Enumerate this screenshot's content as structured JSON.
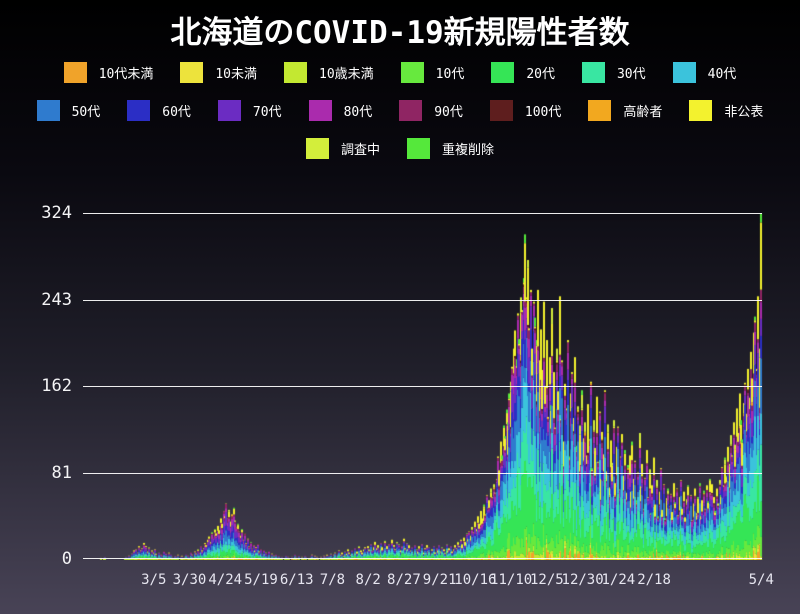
{
  "title": "北海道のCOVID-19新規陽性者数",
  "legend": {
    "rows": [
      [
        0,
        1,
        2,
        3,
        4,
        5,
        6
      ],
      [
        7,
        8,
        9,
        10,
        11,
        12,
        13,
        14
      ],
      [
        15,
        16
      ]
    ],
    "items": [
      {
        "label": "10代未満",
        "color": "#F0A32A"
      },
      {
        "label": "10未満",
        "color": "#EDE33C"
      },
      {
        "label": "10歳未満",
        "color": "#C3E831"
      },
      {
        "label": "10代",
        "color": "#67E93E"
      },
      {
        "label": "20代",
        "color": "#35E556"
      },
      {
        "label": "30代",
        "color": "#39E6A2"
      },
      {
        "label": "40代",
        "color": "#3BC3DC"
      },
      {
        "label": "50代",
        "color": "#2F7BCE"
      },
      {
        "label": "60代",
        "color": "#2B2EC5"
      },
      {
        "label": "70代",
        "color": "#6B2CC2"
      },
      {
        "label": "80代",
        "color": "#AA2BAD"
      },
      {
        "label": "90代",
        "color": "#8F2563"
      },
      {
        "label": "100代",
        "color": "#5E1E1E"
      },
      {
        "label": "高齢者",
        "color": "#F2A81F"
      },
      {
        "label": "非公表",
        "color": "#F3F22E"
      },
      {
        "label": "調査中",
        "color": "#D3EE3B"
      },
      {
        "label": "重複削除",
        "color": "#55E83B"
      }
    ]
  },
  "chart_data": {
    "type": "bar",
    "stacked": true,
    "title": "北海道のCOVID-19新規陽性者数",
    "ylabel": "",
    "xlabel": "",
    "ylim": [
      0,
      324
    ],
    "y_ticks": [
      0,
      81,
      162,
      243,
      324
    ],
    "grid": true,
    "legend_position": "top",
    "start_date": "2020-01-28",
    "end_date": "2021-05-04",
    "x_tick_labels": [
      {
        "label": "3/5",
        "day_index": 37
      },
      {
        "label": "3/30",
        "day_index": 62
      },
      {
        "label": "4/24",
        "day_index": 87
      },
      {
        "label": "5/19",
        "day_index": 112
      },
      {
        "label": "6/13",
        "day_index": 137
      },
      {
        "label": "7/8",
        "day_index": 162
      },
      {
        "label": "8/2",
        "day_index": 187
      },
      {
        "label": "8/27",
        "day_index": 212
      },
      {
        "label": "9/21",
        "day_index": 237
      },
      {
        "label": "10/16",
        "day_index": 262
      },
      {
        "label": "11/10",
        "day_index": 287
      },
      {
        "label": "12/5",
        "day_index": 312
      },
      {
        "label": "12/30",
        "day_index": 337
      },
      {
        "label": "1/24",
        "day_index": 362
      },
      {
        "label": "2/18",
        "day_index": 387
      },
      {
        "label": "5/4",
        "day_index": 462
      }
    ],
    "series_order": [
      "10代未満",
      "10未満",
      "10歳未満",
      "10代",
      "20代",
      "30代",
      "40代",
      "50代",
      "60代",
      "70代",
      "80代",
      "90代",
      "100代",
      "高齢者",
      "非公表",
      "調査中",
      "重複削除"
    ],
    "peak_value": 304,
    "last_value": 324,
    "daily_totals": [
      1,
      0,
      1,
      2,
      0,
      0,
      0,
      0,
      0,
      0,
      0,
      0,
      0,
      0,
      0,
      0,
      0,
      1,
      2,
      1,
      3,
      2,
      5,
      8,
      2,
      9,
      6,
      12,
      8,
      10,
      15,
      9,
      12,
      7,
      11,
      4,
      8,
      6,
      9,
      5,
      2,
      6,
      4,
      3,
      7,
      2,
      5,
      3,
      6,
      4,
      2,
      1,
      3,
      2,
      4,
      0,
      2,
      3,
      1,
      2,
      4,
      3,
      2,
      6,
      4,
      2,
      7,
      5,
      9,
      6,
      12,
      8,
      10,
      15,
      13,
      18,
      21,
      16,
      25,
      20,
      28,
      24,
      31,
      27,
      38,
      33,
      45,
      40,
      52,
      38,
      46,
      35,
      42,
      48,
      36,
      30,
      33,
      26,
      22,
      28,
      18,
      24,
      15,
      19,
      12,
      16,
      10,
      13,
      8,
      11,
      14,
      7,
      9,
      5,
      8,
      4,
      6,
      3,
      7,
      2,
      5,
      3,
      1,
      4,
      2,
      3,
      1,
      2,
      0,
      1,
      3,
      2,
      1,
      0,
      2,
      1,
      4,
      2,
      1,
      3,
      0,
      2,
      1,
      3,
      2,
      0,
      1,
      2,
      4,
      1,
      3,
      2,
      1,
      0,
      2,
      1,
      3,
      2,
      4,
      1,
      3,
      5,
      2,
      4,
      6,
      3,
      5,
      8,
      4,
      6,
      3,
      7,
      5,
      9,
      6,
      4,
      8,
      5,
      10,
      7,
      5,
      12,
      8,
      6,
      9,
      11,
      7,
      12,
      9,
      14,
      8,
      11,
      16,
      10,
      13,
      8,
      15,
      11,
      9,
      17,
      12,
      8,
      14,
      10,
      18,
      13,
      9,
      16,
      11,
      14,
      8,
      12,
      19,
      10,
      15,
      9,
      13,
      8,
      11,
      6,
      13,
      9,
      7,
      12,
      8,
      14,
      6,
      10,
      13,
      7,
      11,
      5,
      9,
      12,
      6,
      10,
      8,
      13,
      7,
      11,
      9,
      6,
      14,
      8,
      10,
      12,
      7,
      9,
      13,
      10,
      16,
      12,
      18,
      14,
      20,
      16,
      24,
      19,
      26,
      22,
      30,
      25,
      35,
      28,
      40,
      33,
      45,
      38,
      51,
      42,
      60,
      48,
      55,
      66,
      58,
      70,
      62,
      75,
      96,
      83,
      110,
      97,
      125,
      115,
      140,
      128,
      155,
      166,
      180,
      197,
      214,
      187,
      230,
      206,
      245,
      233,
      263,
      304,
      245,
      280,
      216,
      252,
      197,
      241,
      226,
      205,
      252,
      186,
      215,
      177,
      241,
      162,
      205,
      133,
      189,
      144,
      235,
      175,
      123,
      197,
      157,
      246,
      131,
      186,
      110,
      164,
      141,
      205,
      96,
      155,
      175,
      132,
      189,
      106,
      143,
      125,
      96,
      158,
      113,
      128,
      97,
      145,
      112,
      166,
      85,
      130,
      104,
      152,
      91,
      138,
      75,
      119,
      98,
      158,
      82,
      126,
      67,
      111,
      90,
      130,
      71,
      105,
      124,
      65,
      96,
      117,
      78,
      102,
      62,
      88,
      97,
      63,
      110,
      75,
      92,
      55,
      81,
      118,
      68,
      89,
      47,
      76,
      102,
      58,
      84,
      43,
      69,
      95,
      51,
      74,
      40,
      63,
      85,
      46,
      70,
      38,
      57,
      66,
      49,
      61,
      44,
      71,
      53,
      66,
      41,
      58,
      74,
      47,
      63,
      39,
      56,
      69,
      45,
      60,
      36,
      52,
      66,
      43,
      58,
      71,
      40,
      55,
      64,
      47,
      69,
      54,
      75,
      61,
      70,
      58,
      45,
      66,
      52,
      74,
      60,
      86,
      69,
      95,
      78,
      105,
      89,
      116,
      97,
      128,
      107,
      141,
      118,
      155,
      130,
      112,
      146,
      165,
      136,
      178,
      151,
      194,
      169,
      212,
      227,
      178,
      246,
      197,
      324
    ],
    "composition_profiles": [
      {
        "until_day": 160,
        "fractions": {
          "10代未満": 0.005,
          "10未満": 0.005,
          "10歳未満": 0.02,
          "10代": 0.05,
          "20代": 0.12,
          "30代": 0.1,
          "40代": 0.12,
          "50代": 0.13,
          "60代": 0.1,
          "70代": 0.12,
          "80代": 0.1,
          "90代": 0.05,
          "100代": 0.003,
          "高齢者": 0.005,
          "非公表": 0.06,
          "調査中": 0.007,
          "重複削除": 0.005
        }
      },
      {
        "until_day": 463,
        "fractions": {
          "10代未満": 0.01,
          "10未満": 0.005,
          "10歳未満": 0.015,
          "10代": 0.06,
          "20代": 0.18,
          "30代": 0.13,
          "40代": 0.13,
          "50代": 0.12,
          "60代": 0.08,
          "70代": 0.07,
          "80代": 0.055,
          "90代": 0.025,
          "100代": 0.002,
          "高齢者": 0.003,
          "非公表": 0.1,
          "調査中": 0.01,
          "重複削除": 0.005
        }
      }
    ]
  }
}
